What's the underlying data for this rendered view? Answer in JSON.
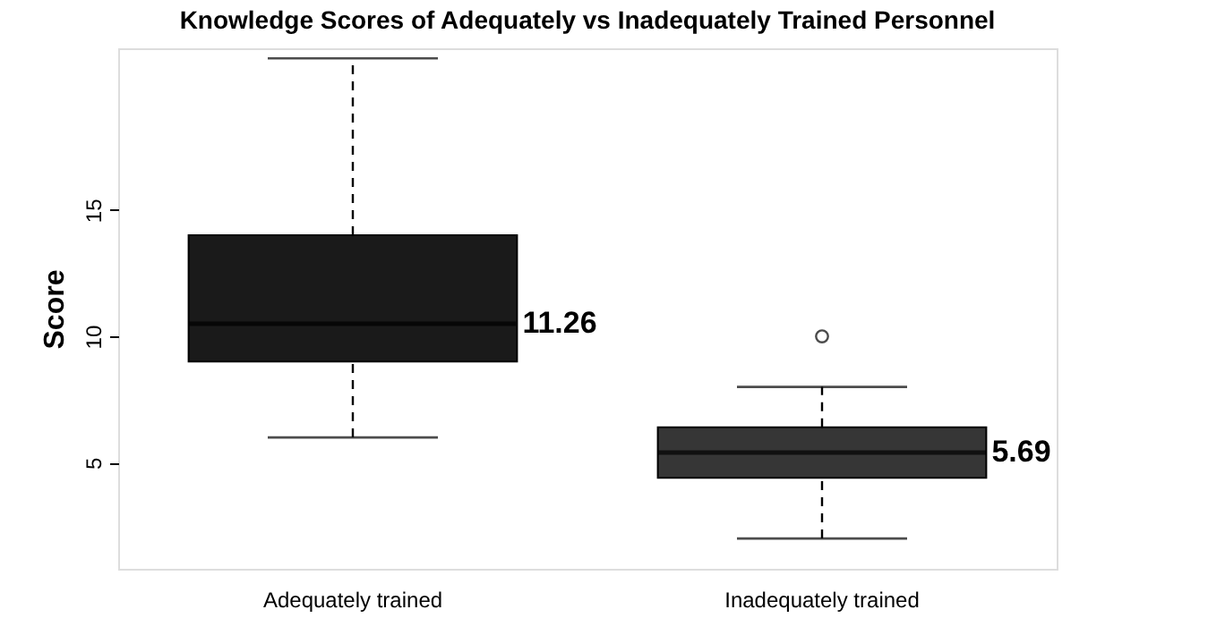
{
  "chart_data": {
    "type": "box",
    "title": "Knowledge Scores of Adequately vs Inadequately Trained Personnel",
    "ylabel": "Score",
    "categories": [
      "Adequately trained",
      "Inadequately trained"
    ],
    "boxes": [
      {
        "low": 6,
        "q1": 9,
        "median": 10.5,
        "q3": 14,
        "high": 21
      },
      {
        "low": 2,
        "q1": 4.4,
        "median": 5.4,
        "q3": 6.4,
        "high": 8,
        "outliers": [
          10
        ]
      }
    ],
    "colors": [
      "#1a1a1a",
      "#363636"
    ],
    "annotations": [
      "11.26",
      "5.69"
    ],
    "ylim": [
      0.8,
      21.4
    ],
    "yticks": [
      5,
      10,
      15
    ],
    "grid": false
  }
}
